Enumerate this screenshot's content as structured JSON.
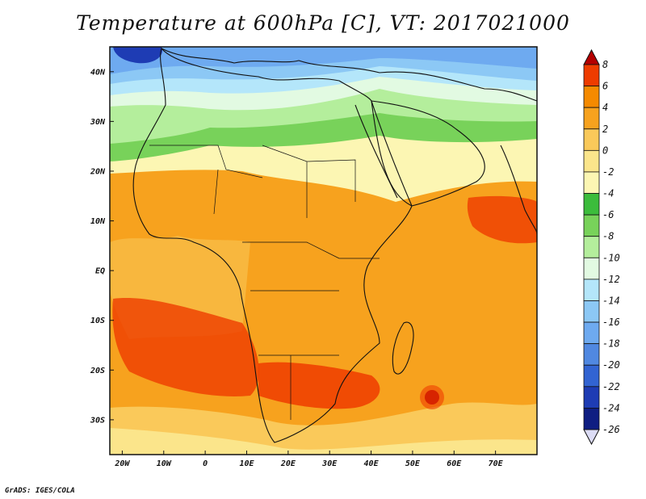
{
  "title": "Temperature at 600hPa [C], VT: 2017021000",
  "credit": "GrADS: IGES/COLA",
  "map": {
    "lat_range": [
      -37,
      45
    ],
    "lon_range": [
      -23,
      80
    ],
    "lat_ticks": [
      "40N",
      "30N",
      "20N",
      "10N",
      "EQ",
      "10S",
      "20S",
      "30S"
    ],
    "lat_tick_values": [
      40,
      30,
      20,
      10,
      0,
      -10,
      -20,
      -30
    ],
    "lon_ticks": [
      "20W",
      "10W",
      "0",
      "10E",
      "20E",
      "30E",
      "40E",
      "50E",
      "60E",
      "70E"
    ],
    "lon_tick_values": [
      -20,
      -10,
      0,
      10,
      20,
      30,
      40,
      50,
      60,
      70
    ]
  },
  "colorbar": {
    "labels": [
      "8",
      "6",
      "4",
      "2",
      "0",
      "-2",
      "-4",
      "-6",
      "-8",
      "-10",
      "-12",
      "-14",
      "-16",
      "-18",
      "-20",
      "-22",
      "-24",
      "-26"
    ],
    "colors": [
      "#b40000",
      "#ee3c00",
      "#f58a00",
      "#f7a21e",
      "#fac95a",
      "#fbe58b",
      "#fcf6b3",
      "#3cbc3c",
      "#78d25a",
      "#b4ee9c",
      "#e2fae2",
      "#b4e6fa",
      "#8cc8f5",
      "#6eaaf0",
      "#5088e1",
      "#3264d2",
      "#1e3cb4",
      "#0f1e82",
      "#dcdcf5"
    ]
  }
}
